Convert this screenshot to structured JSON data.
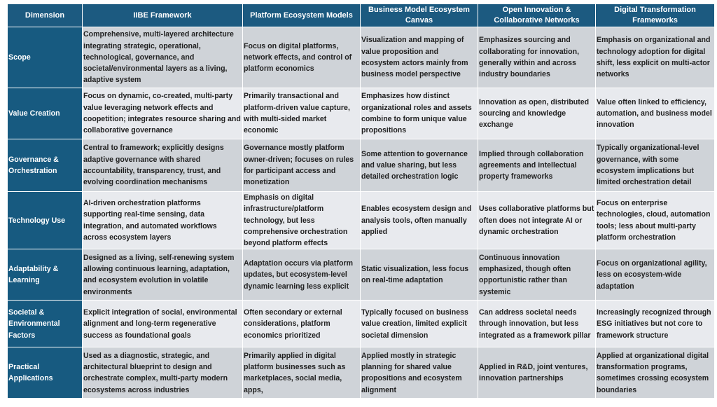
{
  "headers": [
    "Dimension",
    "IIBE Framework",
    "Platform Ecosystem Models",
    "Business Model Ecosystem Canvas",
    "Open Innovation & Collaborative Networks",
    "Digital Transformation Frameworks"
  ],
  "rows": [
    {
      "dimension": "Scope",
      "cells": [
        "Comprehensive, multi-layered architecture integrating strategic, operational, technological, governance, and societal/environmental layers as a living, adaptive system",
        "Focus on digital platforms, network effects, and control of platform economics",
        "Visualization and mapping of value proposition and ecosystem actors mainly from business model perspective",
        "Emphasizes sourcing and collaborating for innovation, generally within and across industry boundaries",
        "Emphasis on organizational and technology adoption for digital shift, less explicit on multi-actor networks"
      ]
    },
    {
      "dimension": "Value Creation",
      "cells": [
        "Focus on dynamic, co-created, multi-party value leveraging network effects and coopetition; integrates resource sharing and collaborative governance",
        "Primarily transactional and platform-driven value capture, with multi-sided market economic",
        "Emphasizes how distinct organizational roles and assets combine to form unique value propositions",
        "Innovation as open, distributed sourcing and knowledge exchange",
        "Value often linked to efficiency, automation, and business model innovation"
      ]
    },
    {
      "dimension": "Governance & Orchestration",
      "cells": [
        "Central to framework; explicitly designs adaptive governance with shared accountability, transparency, trust, and evolving coordination mechanisms",
        "Governance mostly platform owner-driven; focuses on rules for participant access and monetization",
        "Some attention to governance and value sharing, but less detailed orchestration logic",
        "Implied through collaboration agreements and intellectual property frameworks",
        "Typically organizational-level governance, with some ecosystem implications but limited orchestration detail"
      ]
    },
    {
      "dimension": "Technology Use",
      "cells": [
        "AI-driven orchestration platforms supporting real-time sensing, data integration, and automated workflows across ecosystem layers",
        "Emphasis on digital infrastructure/platform technology, but less comprehensive orchestration beyond platform effects",
        "Enables ecosystem design and analysis tools, often manually applied",
        "Uses collaborative platforms but often does not integrate AI or dynamic orchestration",
        "Focus on enterprise technologies, cloud, automation tools; less about multi-party platform orchestration"
      ]
    },
    {
      "dimension": "Adaptability & Learning",
      "cells": [
        "Designed as a living, self-renewing system allowing continuous learning, adaptation, and ecosystem evolution in volatile environments",
        "Adaptation occurs via platform updates, but ecosystem-level dynamic learning less explicit",
        "Static visualization, less focus on real-time adaptation",
        "Continuous innovation emphasized, though often opportunistic rather than systemic",
        "Focus on organizational agility, less on ecosystem-wide adaptation"
      ]
    },
    {
      "dimension": "Societal & Environmental Factors",
      "cells": [
        "Explicit integration of social, environmental alignment and long-term regenerative success as foundational goals",
        "Often secondary or external considerations, platform economics prioritized",
        "Typically focused on business value creation, limited explicit societal dimension",
        "Can address societal needs through innovation, but less integrated as a framework pillar",
        "Increasingly recognized through ESG initiatives but not core to framework structure"
      ]
    },
    {
      "dimension": "Practical Applications",
      "cells": [
        "Used as a diagnostic, strategic, and architectural blueprint to design and orchestrate complex, multi-party modern ecosystems across industries",
        "Primarily applied in digital platform businesses such as marketplaces, social media, apps,",
        "Applied mostly in strategic planning for shared value propositions and ecosystem alignment",
        "Applied in R&D, joint ventures, innovation partnerships",
        "Applied at organizational digital transformation programs, sometimes crossing ecosystem boundaries"
      ]
    }
  ]
}
